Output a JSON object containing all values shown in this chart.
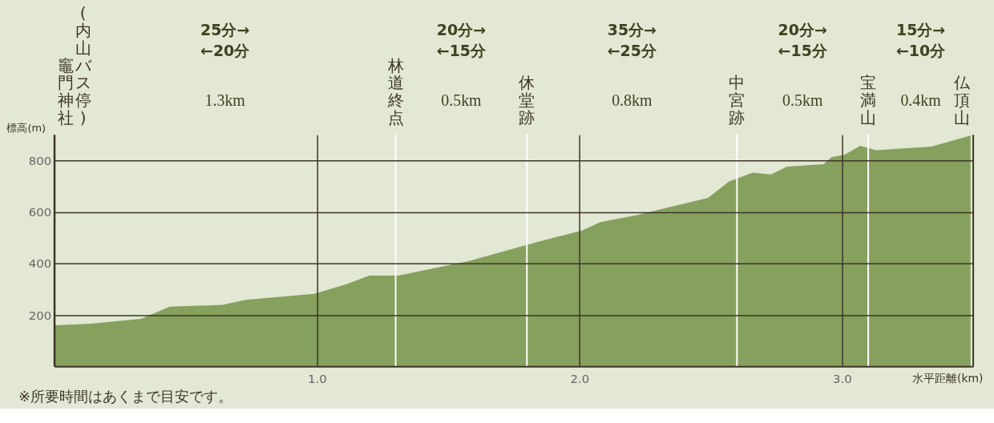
{
  "chart_data": {
    "type": "area",
    "ylabel": "標高(m)",
    "xlabel": "水平距離(km)",
    "x": [
      0,
      0.13,
      0.33,
      0.44,
      0.64,
      0.73,
      0.99,
      1.11,
      1.2,
      1.31,
      1.58,
      1.84,
      2.01,
      2.08,
      2.22,
      2.34,
      2.49,
      2.57,
      2.66,
      2.73,
      2.79,
      2.93,
      2.96,
      3.01,
      3.07,
      3.13,
      3.34,
      3.49
    ],
    "series": [
      {
        "color": "#86a05e",
        "values": [
          160,
          165,
          185,
          232,
          239,
          259,
          282,
          319,
          353,
          353,
          410,
          484,
          528,
          561,
          588,
          618,
          655,
          719,
          753,
          746,
          776,
          786,
          813,
          823,
          857,
          840,
          854,
          897
        ]
      }
    ],
    "xlim": [
      0,
      3.5
    ],
    "xticks": [
      {
        "value": 1,
        "label": "1.0"
      },
      {
        "value": 2,
        "label": "2.0"
      },
      {
        "value": 3,
        "label": "3.0"
      }
    ],
    "ylim": [
      0,
      900
    ],
    "yticks": [
      200,
      400,
      600,
      800
    ],
    "grid": true,
    "ref_lines": [
      {
        "axis": "x",
        "value": 0,
        "label": "竈門神社",
        "color": "#3d3525"
      },
      {
        "axis": "x",
        "value": 1.3,
        "label": "林道終点",
        "color": "#ffffff"
      },
      {
        "axis": "x",
        "value": 1.8,
        "label": "休堂跡",
        "color": "#ffffff"
      },
      {
        "axis": "x",
        "value": 2.6,
        "label": "中宮跡",
        "color": "#ffffff"
      },
      {
        "axis": "x",
        "value": 3.1,
        "label": "宝満山",
        "color": "#ffffff"
      },
      {
        "axis": "x",
        "value": 3.5,
        "label": "仏頂山",
        "color": "#3d3525"
      }
    ],
    "annotations": [
      "25分→",
      "←20分",
      "1.3km",
      "20分→",
      "←15分",
      "0.5km",
      "35分→",
      "←25分",
      "0.8km",
      "20分→",
      "←15分",
      "0.5km",
      "15分→",
      "←10分",
      "0.4km",
      "(内山バス停)",
      "※所要時間はあくまで目安です。"
    ]
  }
}
